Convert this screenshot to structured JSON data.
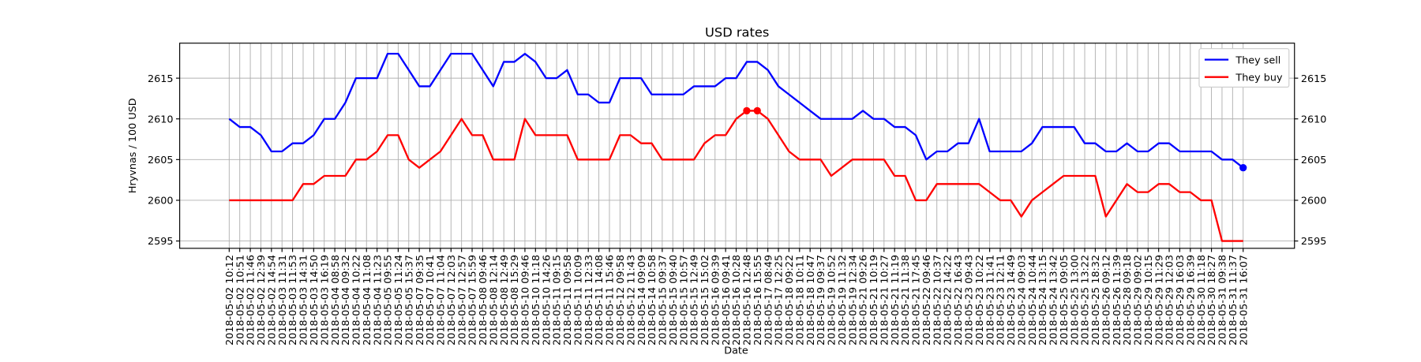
{
  "chart_data": {
    "type": "line",
    "title": "USD rates",
    "x_label": "Date",
    "y_label": "Hryvnas / 100 USD",
    "categories": [
      "2018-05-02 10:12",
      "2018-05-02 10:51",
      "2018-05-02 11:46",
      "2018-05-02 12:39",
      "2018-05-02 14:54",
      "2018-05-03 11:31",
      "2018-05-03 11:53",
      "2018-05-03 14:31",
      "2018-05-03 14:50",
      "2018-05-03 16:19",
      "2018-05-04 08:58",
      "2018-05-04 09:32",
      "2018-05-04 10:22",
      "2018-05-04 11:08",
      "2018-05-04 11:23",
      "2018-05-05 09:55",
      "2018-05-05 11:24",
      "2018-05-05 15:37",
      "2018-05-07 09:35",
      "2018-05-07 10:41",
      "2018-05-07 11:04",
      "2018-05-07 12:03",
      "2018-05-07 12:57",
      "2018-05-07 15:59",
      "2018-05-08 09:46",
      "2018-05-08 12:14",
      "2018-05-08 12:49",
      "2018-05-08 15:29",
      "2018-05-10 09:46",
      "2018-05-10 11:18",
      "2018-05-10 14:26",
      "2018-05-11 09:15",
      "2018-05-11 09:58",
      "2018-05-11 10:09",
      "2018-05-11 12:33",
      "2018-05-11 14:08",
      "2018-05-11 15:46",
      "2018-05-12 09:58",
      "2018-05-12 11:43",
      "2018-05-14 09:09",
      "2018-05-14 10:58",
      "2018-05-15 09:37",
      "2018-05-15 09:40",
      "2018-05-15 10:57",
      "2018-05-15 12:49",
      "2018-05-15 15:02",
      "2018-05-16 09:39",
      "2018-05-16 09:41",
      "2018-05-16 10:28",
      "2018-05-16 12:48",
      "2018-05-16 15:55",
      "2018-05-17 08:49",
      "2018-05-17 12:25",
      "2018-05-18 09:22",
      "2018-05-18 10:11",
      "2018-05-18 10:47",
      "2018-05-19 09:37",
      "2018-05-19 10:52",
      "2018-05-19 11:32",
      "2018-05-19 12:34",
      "2018-05-21 09:26",
      "2018-05-21 10:19",
      "2018-05-21 10:27",
      "2018-05-21 11:19",
      "2018-05-21 11:38",
      "2018-05-21 17:45",
      "2018-05-22 09:46",
      "2018-05-22 10:37",
      "2018-05-22 14:22",
      "2018-05-22 16:43",
      "2018-05-23 09:43",
      "2018-05-23 10:22",
      "2018-05-23 11:41",
      "2018-05-23 12:11",
      "2018-05-23 14:49",
      "2018-05-24 09:03",
      "2018-05-24 10:44",
      "2018-05-24 13:15",
      "2018-05-24 13:42",
      "2018-05-25 09:05",
      "2018-05-25 13:00",
      "2018-05-25 13:22",
      "2018-05-25 18:32",
      "2018-05-26 09:12",
      "2018-05-26 11:39",
      "2018-05-28 09:18",
      "2018-05-29 09:02",
      "2018-05-29 10:15",
      "2018-05-29 11:29",
      "2018-05-29 12:03",
      "2018-05-29 16:03",
      "2018-05-29 16:39",
      "2018-05-30 11:18",
      "2018-05-30 18:27",
      "2018-05-31 09:38",
      "2018-05-31 11:37",
      "2018-05-31 16:07"
    ],
    "series": [
      {
        "name": "They sell",
        "color": "#0000ff",
        "marker_indices": [
          96
        ],
        "values": [
          2610,
          2609,
          2609,
          2608,
          2606,
          2606,
          2607,
          2607,
          2608,
          2610,
          2610,
          2612,
          2615,
          2615,
          2615,
          2618,
          2618,
          2616,
          2614,
          2614,
          2616,
          2618,
          2618,
          2618,
          2616,
          2614,
          2617,
          2617,
          2618,
          2617,
          2615,
          2615,
          2616,
          2613,
          2613,
          2612,
          2612,
          2615,
          2615,
          2615,
          2613,
          2613,
          2613,
          2613,
          2614,
          2614,
          2614,
          2615,
          2615,
          2617,
          2617,
          2616,
          2614,
          2613,
          2612,
          2611,
          2610,
          2610,
          2610,
          2610,
          2611,
          2610,
          2610,
          2609,
          2609,
          2608,
          2605,
          2606,
          2606,
          2607,
          2607,
          2610,
          2606,
          2606,
          2606,
          2606,
          2607,
          2609,
          2609,
          2609,
          2609,
          2607,
          2607,
          2606,
          2606,
          2607,
          2606,
          2606,
          2607,
          2607,
          2606,
          2606,
          2606,
          2606,
          2605,
          2605,
          2604
        ]
      },
      {
        "name": "They buy",
        "color": "#ff0000",
        "marker_indices": [
          49,
          50
        ],
        "values": [
          2600,
          2600,
          2600,
          2600,
          2600,
          2600,
          2600,
          2602,
          2602,
          2603,
          2603,
          2603,
          2605,
          2605,
          2606,
          2608,
          2608,
          2605,
          2604,
          2605,
          2606,
          2608,
          2610,
          2608,
          2608,
          2605,
          2605,
          2605,
          2610,
          2608,
          2608,
          2608,
          2608,
          2605,
          2605,
          2605,
          2605,
          2608,
          2608,
          2607,
          2607,
          2605,
          2605,
          2605,
          2605,
          2607,
          2608,
          2608,
          2610,
          2611,
          2611,
          2610,
          2608,
          2606,
          2605,
          2605,
          2605,
          2603,
          2604,
          2605,
          2605,
          2605,
          2605,
          2603,
          2603,
          2600,
          2600,
          2602,
          2602,
          2602,
          2602,
          2602,
          2601,
          2600,
          2600,
          2598,
          2600,
          2601,
          2602,
          2603,
          2603,
          2603,
          2603,
          2598,
          2600,
          2602,
          2601,
          2601,
          2602,
          2602,
          2601,
          2601,
          2600,
          2600,
          2595,
          2595,
          2595
        ]
      }
    ],
    "ylim": [
      2594.1,
      2619.3
    ],
    "yticks": [
      2595,
      2600,
      2605,
      2610,
      2615
    ],
    "y2lim": [
      2594.1,
      2619.3
    ],
    "y2ticks": [
      2595,
      2600,
      2605,
      2610,
      2615
    ],
    "grid": true,
    "legend": "upper right"
  }
}
